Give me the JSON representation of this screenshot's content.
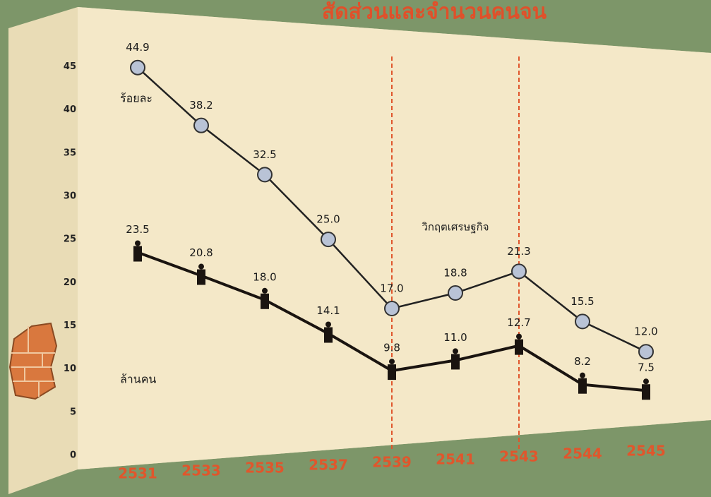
{
  "chart_data": {
    "type": "line",
    "title": "สัดส่วนและจำนวนคนจน",
    "categories": [
      "2531",
      "2533",
      "2535",
      "2537",
      "2539",
      "2541",
      "2543",
      "2544",
      "2545"
    ],
    "series": [
      {
        "name": "ร้อยละ",
        "color": "#222222",
        "marker_color": "#b9c3d6",
        "values": [
          44.9,
          38.2,
          32.5,
          25.0,
          17.0,
          18.8,
          21.3,
          15.5,
          12.0
        ],
        "value_labels": [
          "44.9",
          "38.2",
          "32.5",
          "25.0",
          "17.0",
          "18.8",
          "21.3",
          "15.5",
          "12.0"
        ]
      },
      {
        "name": "ล้านคน",
        "color": "#1a1410",
        "marker_color": "#1a1410",
        "values": [
          23.5,
          20.8,
          18.0,
          14.1,
          9.8,
          11.0,
          12.7,
          8.2,
          7.5
        ],
        "value_labels": [
          "23.5",
          "20.8",
          "18.0",
          "14.1",
          "9.8",
          "11.0",
          "12.7",
          "8.2",
          "7.5"
        ]
      }
    ],
    "annotations": [
      {
        "text": "วิกฤตเศรษฐกิจ",
        "x_start": "2539",
        "x_end": "2543"
      }
    ],
    "ylim": [
      0,
      47
    ],
    "yticks": [
      0,
      5,
      10,
      15,
      20,
      25,
      30,
      35,
      40,
      45
    ],
    "grid": false
  }
}
